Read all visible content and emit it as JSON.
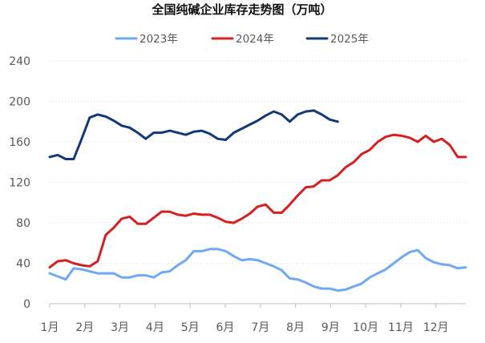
{
  "chart_data": {
    "type": "line",
    "title": "全国纯碱企业库存走势图（万吨）",
    "xlabel": "",
    "ylabel": "",
    "ylim": [
      0,
      240
    ],
    "yticks": [
      0,
      40,
      80,
      120,
      160,
      200,
      240
    ],
    "x_months": [
      "1月",
      "2月",
      "3月",
      "4月",
      "5月",
      "6月",
      "7月",
      "8月",
      "9月",
      "10月",
      "11月",
      "12月"
    ],
    "x_unit": "week",
    "x_range_weeks": [
      1,
      53
    ],
    "grid": true,
    "legend_position": "top",
    "series": [
      {
        "name": "2023年",
        "color": "#6fa8f5",
        "weeks": [
          1,
          2,
          3,
          4,
          5,
          6,
          7,
          8,
          9,
          10,
          11,
          12,
          13,
          14,
          15,
          16,
          17,
          18,
          19,
          20,
          21,
          22,
          23,
          24,
          25,
          26,
          27,
          28,
          29,
          30,
          31,
          32,
          33,
          34,
          35,
          36,
          37,
          38,
          39,
          40,
          41,
          42,
          43,
          44,
          45,
          46,
          47,
          48,
          49,
          50,
          51,
          52,
          53
        ],
        "values": [
          30,
          27,
          24,
          35,
          34,
          32,
          30,
          30,
          30,
          26,
          26,
          28,
          28,
          26,
          31,
          32,
          38,
          43,
          52,
          52,
          54,
          54,
          52,
          47,
          43,
          44,
          43,
          40,
          37,
          33,
          25,
          24,
          21,
          17,
          15,
          15,
          13,
          14,
          17,
          20,
          26,
          30,
          34,
          40,
          46,
          51,
          53,
          45,
          41,
          39,
          38,
          35,
          36
        ]
      },
      {
        "name": "2024年",
        "color": "#d42020",
        "weeks": [
          1,
          2,
          3,
          4,
          5,
          6,
          7,
          8,
          9,
          10,
          11,
          12,
          13,
          14,
          15,
          16,
          17,
          18,
          19,
          20,
          21,
          22,
          23,
          24,
          25,
          26,
          27,
          28,
          29,
          30,
          31,
          32,
          33,
          34,
          35,
          36,
          37,
          38,
          39,
          40,
          41,
          42,
          43,
          44,
          45,
          46,
          47,
          48,
          49,
          50,
          51,
          52,
          53
        ],
        "values": [
          36,
          42,
          43,
          40,
          38,
          37,
          42,
          68,
          75,
          84,
          86,
          79,
          79,
          85,
          91,
          91,
          88,
          87,
          89,
          88,
          88,
          85,
          81,
          80,
          84,
          89,
          96,
          98,
          90,
          90,
          98,
          107,
          115,
          116,
          122,
          122,
          127,
          135,
          140,
          148,
          152,
          160,
          165,
          167,
          166,
          164,
          160,
          166,
          160,
          163,
          157,
          145,
          145
        ]
      },
      {
        "name": "2025年",
        "color": "#13387a",
        "weeks": [
          1,
          2,
          3,
          4,
          5,
          6,
          7,
          8,
          9,
          10,
          11,
          12,
          13,
          14,
          15,
          16,
          17,
          18,
          19,
          20,
          21,
          22,
          23,
          24,
          25,
          26,
          27,
          28,
          29,
          30,
          31,
          32,
          33,
          34,
          35,
          36,
          37
        ],
        "values": [
          145,
          147,
          143,
          143,
          163,
          184,
          187,
          185,
          181,
          176,
          174,
          169,
          163,
          169,
          169,
          171,
          169,
          167,
          170,
          171,
          168,
          163,
          162,
          169,
          173,
          177,
          181,
          186,
          190,
          187,
          180,
          187,
          190,
          191,
          187,
          182,
          180
        ]
      }
    ]
  }
}
